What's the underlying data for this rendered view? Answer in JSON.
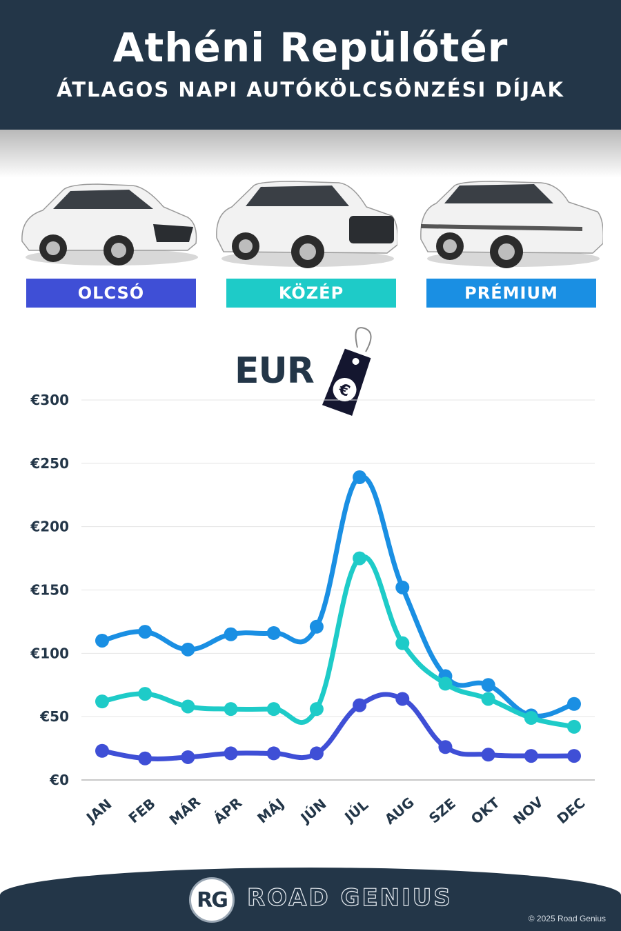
{
  "header": {
    "title": "Athéni Repülőtér",
    "subtitle": "ÁTLAGOS NAPI AUTÓKÖLCSÖNZÉSI DÍJAK"
  },
  "categories": [
    {
      "label": "OLCSÓ",
      "color": "#3f4fd6"
    },
    {
      "label": "KÖZÉP",
      "color": "#1ecbc8"
    },
    {
      "label": "PRÉMIUM",
      "color": "#1a8fe3"
    }
  ],
  "currency_label": "EUR",
  "currency_icon": "euro-price-tag-icon",
  "chart_data": {
    "type": "line",
    "categories": [
      "JAN",
      "FEB",
      "MÁR",
      "ÁPR",
      "MÁJ",
      "JÚN",
      "JÚL",
      "AUG",
      "SZE",
      "OKT",
      "NOV",
      "DEC"
    ],
    "series": [
      {
        "name": "PRÉMIUM",
        "color": "#1a8fe3",
        "values": [
          110,
          117,
          103,
          115,
          116,
          121,
          239,
          152,
          82,
          75,
          51,
          60
        ]
      },
      {
        "name": "KÖZÉP",
        "color": "#1ecbc8",
        "values": [
          62,
          68,
          58,
          56,
          56,
          56,
          175,
          108,
          76,
          64,
          49,
          42
        ]
      },
      {
        "name": "OLCSÓ",
        "color": "#3f4fd6",
        "values": [
          23,
          17,
          18,
          21,
          21,
          21,
          59,
          64,
          26,
          20,
          19,
          19
        ]
      }
    ],
    "ylim": [
      0,
      300
    ],
    "yticks": [
      0,
      50,
      100,
      150,
      200,
      250,
      300
    ],
    "ytick_labels": [
      "€0",
      "€50",
      "€100",
      "€150",
      "€200",
      "€250",
      "€300"
    ],
    "grid": true,
    "title": "",
    "xlabel": "",
    "ylabel": ""
  },
  "footer": {
    "logo_text": "RG",
    "brand": "ROAD GENIUS",
    "copyright": "© 2025 Road Genius"
  }
}
